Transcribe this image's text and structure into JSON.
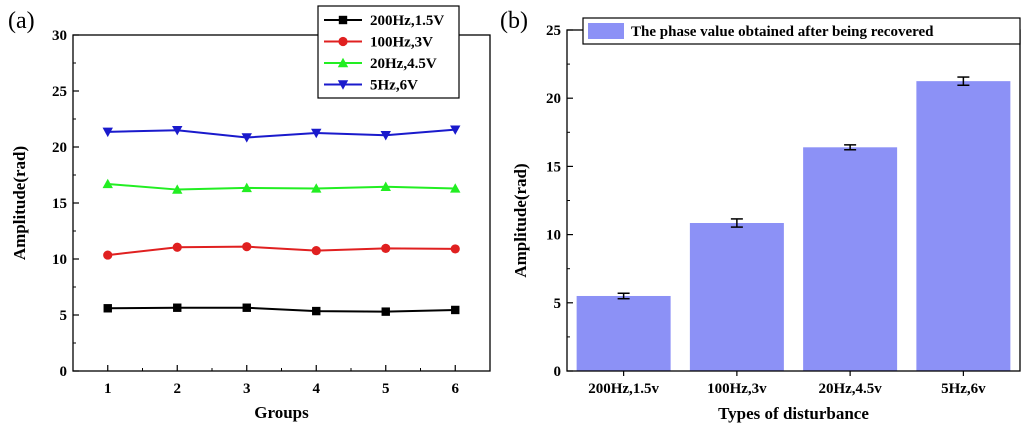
{
  "chart_data": [
    {
      "panel_label": "(a)",
      "type": "line",
      "xlabel": "Groups",
      "ylabel": "Amplitude(rad)",
      "x": [
        1,
        2,
        3,
        4,
        5,
        6
      ],
      "xlim": [
        0.5,
        6.5
      ],
      "ylim": [
        0,
        30
      ],
      "xticks": [
        "1",
        "2",
        "3",
        "4",
        "5",
        "6"
      ],
      "yticks": [
        "0",
        "5",
        "10",
        "15",
        "20",
        "25",
        "30"
      ],
      "legend_position": "top-right",
      "series": [
        {
          "name": "200Hz,1.5V",
          "color": "#000000",
          "marker": "square",
          "values": [
            5.6,
            5.65,
            5.65,
            5.35,
            5.3,
            5.45
          ]
        },
        {
          "name": "100Hz,3V",
          "color": "#e02020",
          "marker": "circle",
          "values": [
            10.35,
            11.05,
            11.1,
            10.75,
            10.95,
            10.9
          ]
        },
        {
          "name": "20Hz,4.5V",
          "color": "#22ee22",
          "marker": "triangle-up",
          "values": [
            16.7,
            16.2,
            16.35,
            16.3,
            16.45,
            16.3
          ]
        },
        {
          "name": "5Hz,6V",
          "color": "#1a1acc",
          "marker": "triangle-down",
          "values": [
            21.35,
            21.5,
            20.85,
            21.25,
            21.05,
            21.55
          ]
        }
      ]
    },
    {
      "panel_label": "(b)",
      "type": "bar",
      "xlabel": "Types of disturbance",
      "ylabel": "Amplitude(rad)",
      "categories": [
        "200Hz,1.5v",
        "100Hz,3v",
        "20Hz,4.5v",
        "5Hz,6v"
      ],
      "ylim": [
        0,
        25
      ],
      "yticks": [
        "0",
        "5",
        "10",
        "15",
        "20",
        "25"
      ],
      "legend_position": "top",
      "series": [
        {
          "name": "The phase value obtained after being recovered",
          "color": "#8c91f6",
          "values": [
            5.5,
            10.85,
            16.4,
            21.25
          ],
          "errors": [
            0.2,
            0.3,
            0.18,
            0.3
          ]
        }
      ]
    }
  ]
}
